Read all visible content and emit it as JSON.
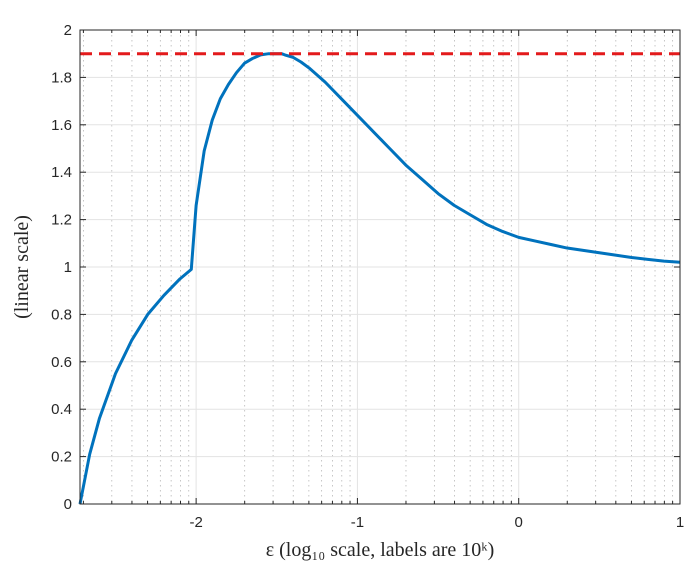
{
  "chart_data": {
    "type": "line",
    "xlabel": "ε (log₁₀ scale, labels are 10ᵏ)",
    "ylabel": "(linear scale)",
    "x_scale": "log10",
    "xlim": [
      -2.72,
      1
    ],
    "ylim": [
      0,
      2
    ],
    "x_ticks": [
      -2,
      -1,
      0,
      1
    ],
    "x_tick_labels": [
      "-2",
      "-1",
      "0",
      "1"
    ],
    "y_ticks": [
      0,
      0.2,
      0.4,
      0.6,
      0.8,
      1,
      1.2,
      1.4,
      1.6,
      1.8,
      2
    ],
    "y_tick_labels": [
      "0",
      "0.2",
      "0.4",
      "0.6",
      "0.8",
      "1",
      "1.2",
      "1.4",
      "1.6",
      "1.8",
      "2"
    ],
    "grid": true,
    "minor_grid": true,
    "series": [
      {
        "style": "solid",
        "color": "#0072bd",
        "x": [
          -2.72,
          -2.66,
          -2.6,
          -2.5,
          -2.4,
          -2.3,
          -2.2,
          -2.1,
          -2.03,
          -2.0,
          -1.95,
          -1.9,
          -1.85,
          -1.8,
          -1.75,
          -1.7,
          -1.65,
          -1.6,
          -1.55,
          -1.5,
          -1.47,
          -1.45,
          -1.4,
          -1.35,
          -1.3,
          -1.2,
          -1.1,
          -1.0,
          -0.9,
          -0.8,
          -0.7,
          -0.6,
          -0.5,
          -0.4,
          -0.3,
          -0.2,
          -0.1,
          0.0,
          0.1,
          0.2,
          0.3,
          0.4,
          0.5,
          0.6,
          0.7,
          0.8,
          0.9,
          1.0
        ],
        "y": [
          0.0,
          0.21,
          0.36,
          0.55,
          0.69,
          0.8,
          0.88,
          0.95,
          0.99,
          1.26,
          1.49,
          1.62,
          1.71,
          1.77,
          1.82,
          1.86,
          1.88,
          1.895,
          1.9,
          1.9,
          1.9,
          1.895,
          1.885,
          1.865,
          1.84,
          1.78,
          1.71,
          1.64,
          1.57,
          1.5,
          1.43,
          1.37,
          1.31,
          1.26,
          1.22,
          1.18,
          1.15,
          1.125,
          1.11,
          1.095,
          1.08,
          1.07,
          1.06,
          1.05,
          1.04,
          1.032,
          1.025,
          1.02
        ]
      },
      {
        "style": "dashed",
        "color": "#e31a1c",
        "x": [
          -2.72,
          1
        ],
        "y": [
          1.9,
          1.9
        ]
      }
    ]
  }
}
